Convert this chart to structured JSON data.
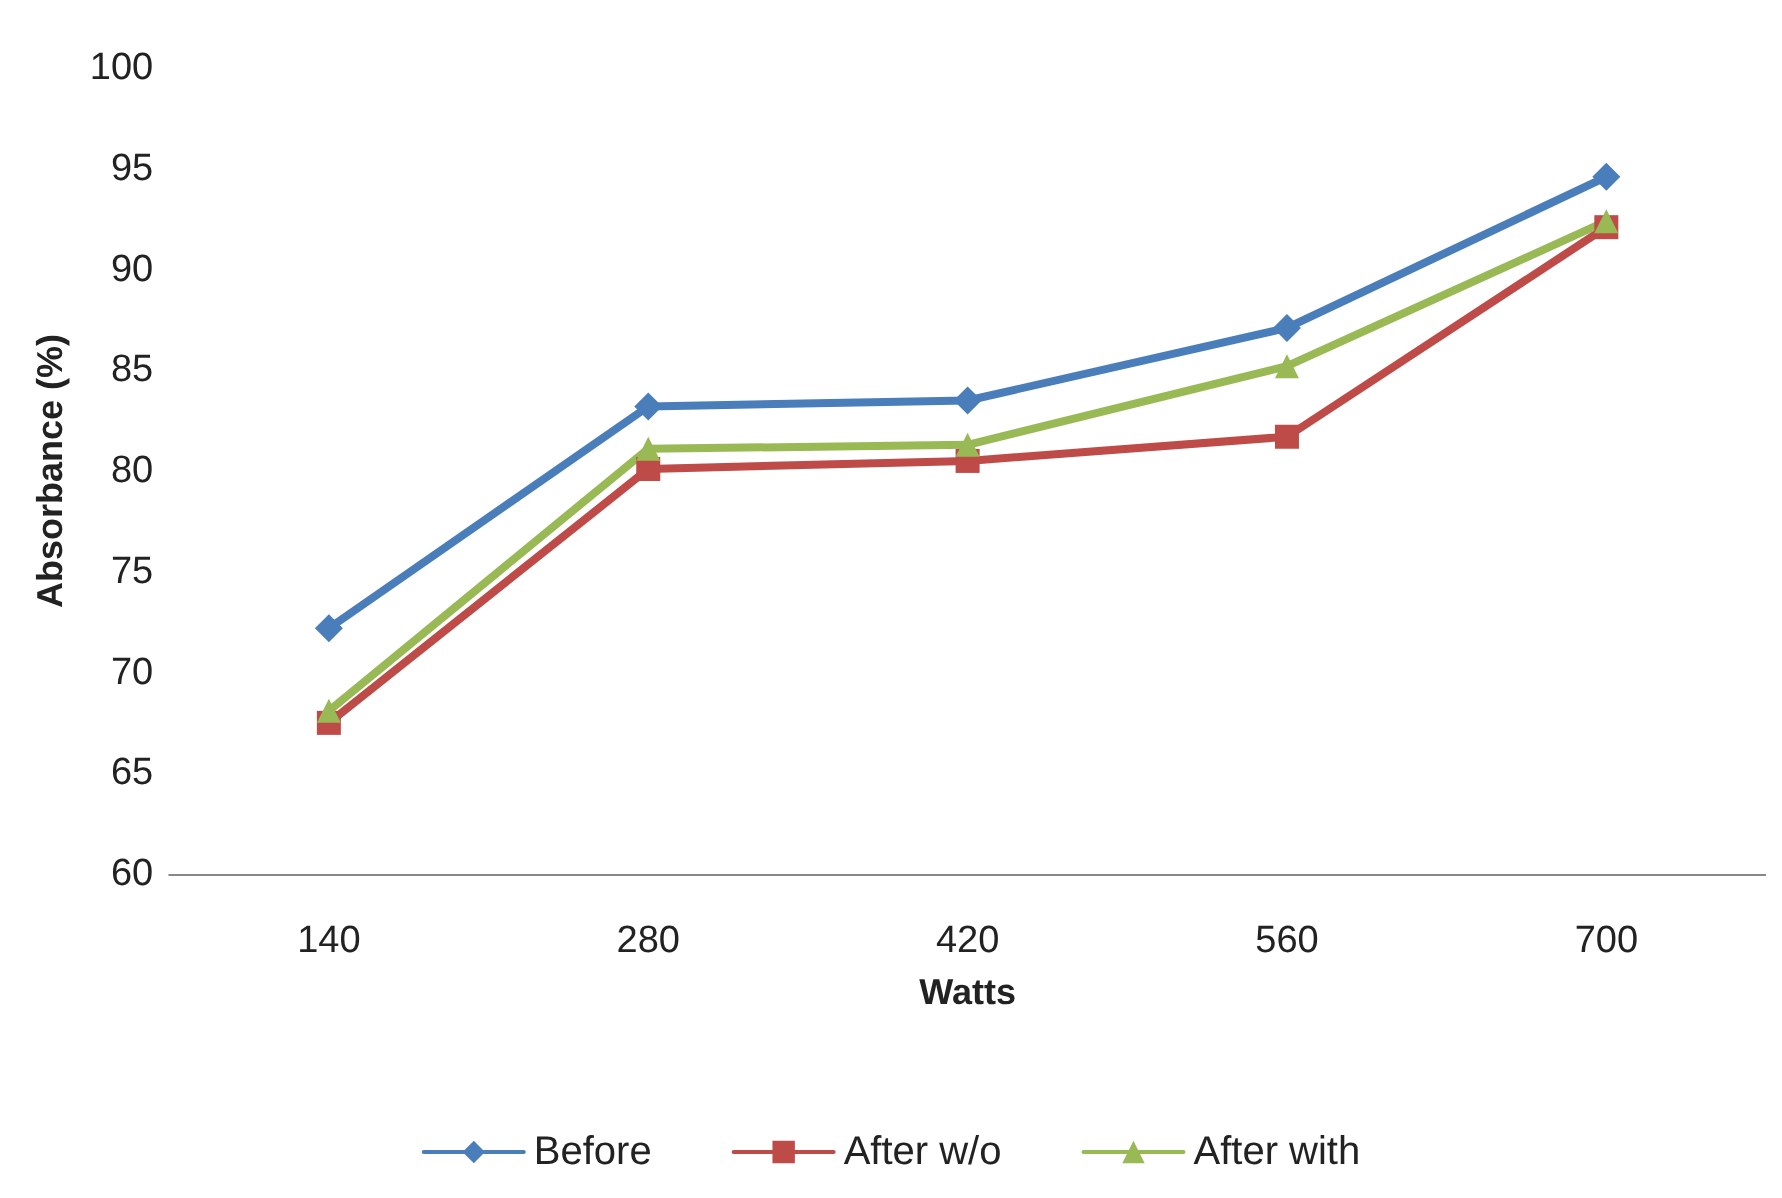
{
  "chart_data": {
    "type": "line",
    "xlabel": "Watts",
    "ylabel": "Absorbance (%)",
    "categories": [
      "140",
      "280",
      "420",
      "560",
      "700"
    ],
    "series": [
      {
        "name": "Before",
        "color": "#4a7ebb",
        "marker": "diamond",
        "values": [
          72.2,
          83.2,
          83.5,
          87.1,
          94.6
        ]
      },
      {
        "name": "After w/o",
        "color": "#be4b48",
        "marker": "square",
        "values": [
          67.5,
          80.1,
          80.5,
          81.7,
          92.1
        ]
      },
      {
        "name": "After with",
        "color": "#98b954",
        "marker": "triangle",
        "values": [
          68.1,
          81.1,
          81.3,
          85.2,
          92.4
        ]
      }
    ],
    "ylim": [
      60,
      100
    ],
    "yticks": [
      60,
      65,
      70,
      75,
      80,
      85,
      90,
      95,
      100
    ],
    "grid": false,
    "legend": "bottom"
  }
}
